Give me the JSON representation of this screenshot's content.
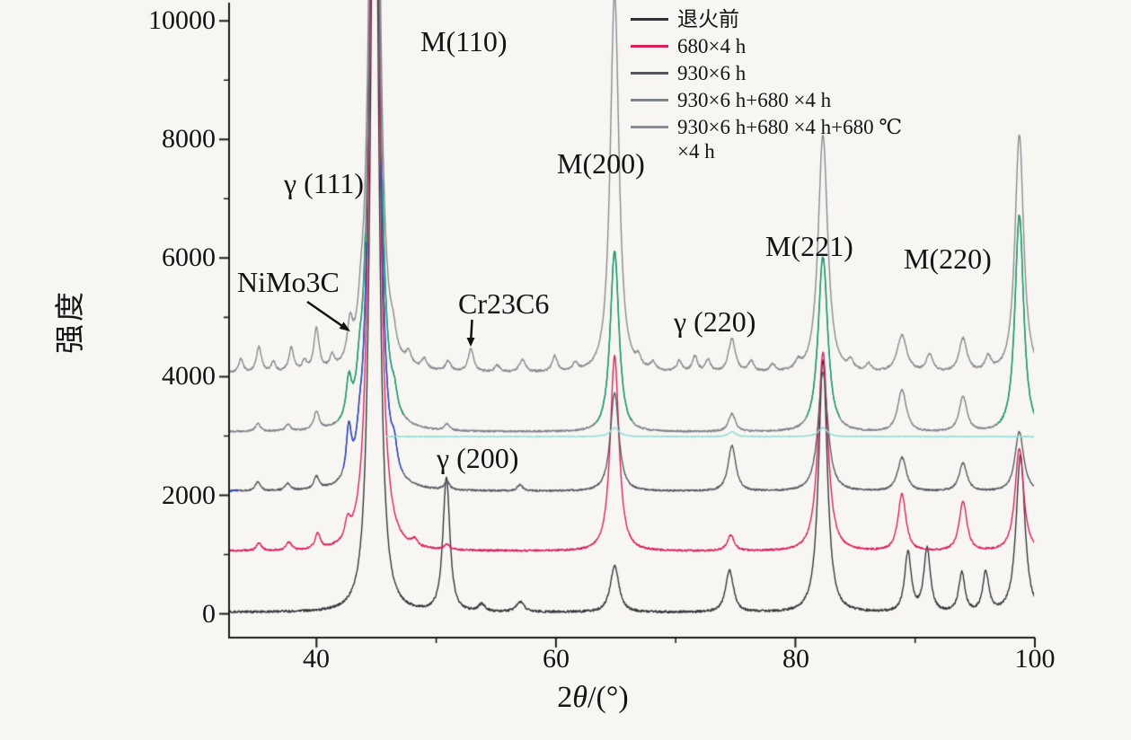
{
  "chart_data": {
    "type": "line",
    "title": "",
    "xlabel": "2θ/(°)",
    "xlabel_parts": {
      "pre": "2",
      "theta": "θ",
      "post": "/(°)"
    },
    "ylabel": "强度",
    "xlim": [
      32.7,
      100
    ],
    "ylim": [
      -400,
      10230
    ],
    "xticks": [
      40,
      60,
      80,
      100
    ],
    "xtick_labels": [
      "40",
      "60",
      "80",
      "100"
    ],
    "yticks": [
      0,
      2000,
      4000,
      6000,
      8000,
      10000
    ],
    "ytick_labels": [
      "0",
      "2000",
      "4000",
      "6000",
      "8000",
      "10000"
    ],
    "x_minor_ticks": [
      50,
      70,
      90
    ],
    "y_minor_ticks": [
      1000,
      3000,
      5000,
      7000,
      9000
    ],
    "grid": false,
    "legend_position": "top-right",
    "axis_color": "#1a1a1a",
    "series": [
      {
        "name": "退火前",
        "color": "#36383d",
        "baseline": 30,
        "noise": 20,
        "seed": 11,
        "peaks": [
          [
            44.85,
            15000,
            0.45
          ],
          [
            50.85,
            2250,
            0.4
          ],
          [
            53.8,
            120,
            0.4
          ],
          [
            57.0,
            170,
            0.45
          ],
          [
            64.9,
            780,
            0.5
          ],
          [
            74.5,
            700,
            0.45
          ],
          [
            82.3,
            4250,
            0.5
          ],
          [
            89.4,
            1000,
            0.38
          ],
          [
            91.0,
            1060,
            0.38
          ],
          [
            93.9,
            660,
            0.35
          ],
          [
            95.9,
            660,
            0.35
          ],
          [
            98.8,
            2650,
            0.5
          ]
        ]
      },
      {
        "name": "680×4 h",
        "color": "#da1f5e",
        "baseline": 1060,
        "noise": 16,
        "seed": 22,
        "peaks": [
          [
            35.2,
            130,
            0.28
          ],
          [
            37.7,
            140,
            0.28
          ],
          [
            40.1,
            260,
            0.3
          ],
          [
            42.6,
            300,
            0.3
          ],
          [
            44.85,
            15000,
            0.5
          ],
          [
            48.2,
            110,
            0.3
          ],
          [
            50.9,
            90,
            0.3
          ],
          [
            64.9,
            3280,
            0.5
          ],
          [
            74.6,
            260,
            0.4
          ],
          [
            82.3,
            3350,
            0.55
          ],
          [
            88.9,
            960,
            0.45
          ],
          [
            94.0,
            820,
            0.45
          ],
          [
            98.7,
            1720,
            0.5
          ]
        ]
      },
      {
        "name": "930×6 h",
        "color": "#575b62",
        "baseline": 2070,
        "noise": 15,
        "seed": 33,
        "peaks": [
          [
            35.1,
            150,
            0.28
          ],
          [
            37.6,
            120,
            0.28
          ],
          [
            40.0,
            200,
            0.3
          ],
          [
            42.7,
            800,
            0.28
          ],
          [
            43.6,
            300,
            0.3
          ],
          [
            44.85,
            15000,
            0.5
          ],
          [
            46.5,
            350,
            0.3
          ],
          [
            50.9,
            140,
            0.3
          ],
          [
            57.0,
            100,
            0.3
          ],
          [
            64.9,
            1650,
            0.5
          ],
          [
            74.7,
            760,
            0.45
          ],
          [
            82.3,
            2000,
            0.55
          ],
          [
            88.9,
            560,
            0.5
          ],
          [
            94.0,
            470,
            0.45
          ],
          [
            98.7,
            1000,
            0.5
          ]
        ],
        "accents": [
          {
            "color": "#2d49c8",
            "ranges": [
              [
                32.7,
                33.5
              ],
              [
                42.2,
                44.2
              ],
              [
                45.4,
                47.2
              ]
            ]
          }
        ]
      },
      {
        "name": "930×6 h+680 ×4 h",
        "color": "#7f838a",
        "baseline": 3070,
        "noise": 15,
        "seed": 44,
        "peaks": [
          [
            35.1,
            130,
            0.28
          ],
          [
            37.6,
            110,
            0.28
          ],
          [
            40.0,
            300,
            0.3
          ],
          [
            42.7,
            620,
            0.3
          ],
          [
            43.6,
            380,
            0.3
          ],
          [
            44.85,
            15000,
            0.5
          ],
          [
            46.5,
            260,
            0.3
          ],
          [
            50.9,
            110,
            0.3
          ],
          [
            64.9,
            3050,
            0.5
          ],
          [
            74.7,
            300,
            0.4
          ],
          [
            82.3,
            2950,
            0.55
          ],
          [
            88.9,
            700,
            0.5
          ],
          [
            94.0,
            580,
            0.45
          ],
          [
            98.7,
            3650,
            0.5
          ]
        ],
        "accents": [
          {
            "color": "#12a06b",
            "ranges": [
              [
                41.8,
                44.1
              ],
              [
                45.5,
                47.3
              ],
              [
                63.3,
                66.4
              ],
              [
                80.9,
                83.7
              ],
              [
                96.9,
                100
              ]
            ]
          }
        ]
      },
      {
        "name": "930×6 h+680 ×4 h+680 ℃ ×4 h",
        "color": "#888b90",
        "baseline": 4070,
        "noise": 18,
        "seed": 55,
        "peaks": [
          [
            33.7,
            220,
            0.25
          ],
          [
            35.2,
            430,
            0.28
          ],
          [
            36.4,
            160,
            0.25
          ],
          [
            37.9,
            400,
            0.28
          ],
          [
            39.0,
            160,
            0.25
          ],
          [
            40.0,
            700,
            0.3
          ],
          [
            41.3,
            200,
            0.25
          ],
          [
            42.8,
            560,
            0.3
          ],
          [
            43.7,
            360,
            0.3
          ],
          [
            44.85,
            15000,
            0.5
          ],
          [
            46.4,
            260,
            0.3
          ],
          [
            47.7,
            200,
            0.3
          ],
          [
            49.0,
            170,
            0.3
          ],
          [
            51.0,
            170,
            0.3
          ],
          [
            52.9,
            380,
            0.32
          ],
          [
            55.1,
            110,
            0.3
          ],
          [
            57.2,
            200,
            0.35
          ],
          [
            59.9,
            260,
            0.3
          ],
          [
            61.6,
            120,
            0.3
          ],
          [
            64.9,
            6400,
            0.5
          ],
          [
            66.9,
            160,
            0.3
          ],
          [
            68.1,
            130,
            0.3
          ],
          [
            70.3,
            180,
            0.3
          ],
          [
            71.6,
            260,
            0.3
          ],
          [
            72.7,
            200,
            0.3
          ],
          [
            74.7,
            560,
            0.4
          ],
          [
            76.3,
            180,
            0.3
          ],
          [
            78.1,
            120,
            0.3
          ],
          [
            80.2,
            130,
            0.3
          ],
          [
            82.3,
            4000,
            0.55
          ],
          [
            84.6,
            150,
            0.3
          ],
          [
            86.1,
            130,
            0.3
          ],
          [
            88.9,
            620,
            0.55
          ],
          [
            91.2,
            280,
            0.4
          ],
          [
            94.0,
            560,
            0.45
          ],
          [
            96.1,
            240,
            0.35
          ],
          [
            98.7,
            4000,
            0.5
          ]
        ]
      }
    ],
    "underlay": {
      "name": "cyan-trace",
      "color": "#96ded8",
      "baseline": 2990,
      "noise": 9,
      "seed": 99,
      "range": [
        45.8,
        100
      ],
      "peaks": [
        [
          64.9,
          150,
          0.5
        ],
        [
          74.7,
          80,
          0.4
        ],
        [
          82.3,
          150,
          0.5
        ]
      ]
    },
    "annotations": [
      {
        "id": "nimo3c",
        "label": "NiMo3C"
      },
      {
        "id": "gamma-111",
        "label": "γ (111)"
      },
      {
        "id": "m110",
        "label": "M(110)"
      },
      {
        "id": "cr23c6",
        "label": "Cr23C6"
      },
      {
        "id": "m200",
        "label": "M(200)"
      },
      {
        "id": "gamma-200",
        "label": "γ (200)"
      },
      {
        "id": "gamma-220",
        "label": "γ (220)"
      },
      {
        "id": "m221",
        "label": "M(221)"
      },
      {
        "id": "m220",
        "label": "M(220)"
      }
    ]
  },
  "legend": {
    "items": [
      {
        "label": "退火前",
        "color": "#2e3034"
      },
      {
        "label": "680×4 h",
        "color": "#d92059"
      },
      {
        "label": "930×6 h",
        "color": "#53565c"
      },
      {
        "label": "930×6 h+680 ×4 h",
        "color": "#7e8287"
      },
      {
        "label": "930×6 h+680 ×4 h+680 ℃",
        "label_line2": "×4 h",
        "color": "#8a8d92"
      }
    ]
  }
}
